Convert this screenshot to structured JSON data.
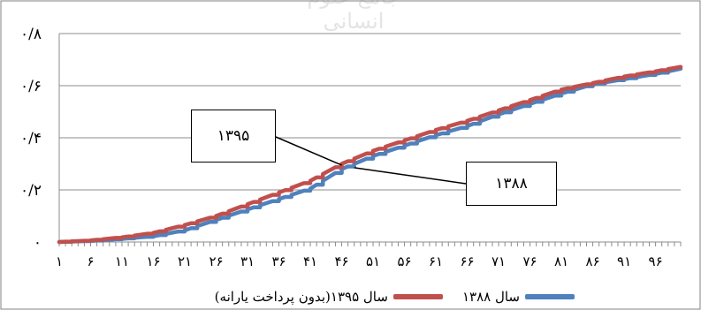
{
  "watermark": "جامع علوم انسانی",
  "chart_data": {
    "type": "line",
    "title": "",
    "xlabel": "",
    "ylabel": "",
    "ylim": [
      0,
      0.8
    ],
    "xlim": [
      1,
      100
    ],
    "y_ticks": [
      0,
      0.2,
      0.4,
      0.6,
      0.8
    ],
    "y_tick_labels": [
      "۰",
      "۰/۲",
      "۰/۴",
      "۰/۶",
      "۰/۸"
    ],
    "x_ticks": [
      1,
      6,
      11,
      16,
      21,
      26,
      31,
      36,
      41,
      46,
      51,
      56,
      61,
      66,
      71,
      76,
      81,
      86,
      91,
      96
    ],
    "x_tick_labels": [
      "۱",
      "۶",
      "۱۱",
      "۱۶",
      "۲۱",
      "۲۶",
      "۳۱",
      "۳۶",
      "۴۱",
      "۴۶",
      "۵۱",
      "۵۶",
      "۶۱",
      "۶۶",
      "۷۱",
      "۷۶",
      "۸۱",
      "۸۶",
      "۹۱",
      "۹۶"
    ],
    "grid": true,
    "legend_position": "bottom",
    "series": [
      {
        "name": "سال ۱۳۸۸",
        "color": "#4f81bd",
        "points": [
          [
            1,
            0
          ],
          [
            6,
            0.004
          ],
          [
            11,
            0.012
          ],
          [
            16,
            0.022
          ],
          [
            21,
            0.045
          ],
          [
            26,
            0.085
          ],
          [
            31,
            0.125
          ],
          [
            36,
            0.165
          ],
          [
            41,
            0.205
          ],
          [
            46,
            0.28
          ],
          [
            51,
            0.33
          ],
          [
            56,
            0.37
          ],
          [
            61,
            0.41
          ],
          [
            66,
            0.445
          ],
          [
            71,
            0.49
          ],
          [
            76,
            0.53
          ],
          [
            81,
            0.57
          ],
          [
            86,
            0.605
          ],
          [
            91,
            0.625
          ],
          [
            96,
            0.645
          ],
          [
            100,
            0.665
          ]
        ]
      },
      {
        "name": "سال ۱۳۹۵(بدون پرداخت یارانه)",
        "color": "#c0504d",
        "points": [
          [
            1,
            0
          ],
          [
            6,
            0.006
          ],
          [
            11,
            0.018
          ],
          [
            16,
            0.035
          ],
          [
            21,
            0.065
          ],
          [
            26,
            0.1
          ],
          [
            31,
            0.145
          ],
          [
            36,
            0.19
          ],
          [
            41,
            0.235
          ],
          [
            46,
            0.3
          ],
          [
            51,
            0.35
          ],
          [
            56,
            0.39
          ],
          [
            61,
            0.43
          ],
          [
            66,
            0.465
          ],
          [
            71,
            0.505
          ],
          [
            76,
            0.545
          ],
          [
            81,
            0.585
          ],
          [
            86,
            0.61
          ],
          [
            91,
            0.635
          ],
          [
            96,
            0.655
          ],
          [
            100,
            0.672
          ]
        ]
      }
    ],
    "annotations": [
      {
        "id": "callout-1395",
        "text": "۱۳۹۵",
        "points_to": [
          46,
          0.295
        ]
      },
      {
        "id": "callout-1388",
        "text": "۱۳۸۸",
        "points_to": [
          48,
          0.285
        ]
      }
    ]
  }
}
